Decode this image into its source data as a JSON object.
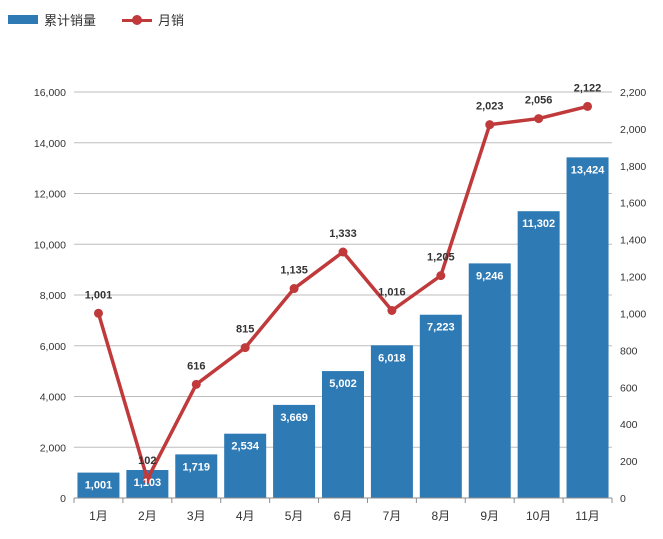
{
  "legend": {
    "cumulative_label": "累计销量",
    "monthly_label": "月销"
  },
  "colors": {
    "bar": "#2e7ab5",
    "line": "#c0393b",
    "grid": "#bdbdbd",
    "axis": "#8c8c8c",
    "text": "#333333",
    "bar_label": "#ffffff"
  },
  "chart_data": {
    "type": "bar",
    "categories": [
      "1月",
      "2月",
      "3月",
      "4月",
      "5月",
      "6月",
      "7月",
      "8月",
      "9月",
      "10月",
      "11月"
    ],
    "series": [
      {
        "name": "累计销量",
        "type": "bar",
        "axis": "left",
        "values": [
          1001,
          1103,
          1719,
          2534,
          3669,
          5002,
          6018,
          7223,
          9246,
          11302,
          13424
        ],
        "labels": [
          "1,001",
          "1,103",
          "1,719",
          "2,534",
          "3,669",
          "5,002",
          "6,018",
          "7,223",
          "9,246",
          "11,302",
          "13,424"
        ]
      },
      {
        "name": "月销",
        "type": "line",
        "axis": "right",
        "values": [
          1001,
          102,
          616,
          815,
          1135,
          1333,
          1016,
          1205,
          2023,
          2056,
          2122
        ],
        "labels": [
          "1,001",
          "102",
          "616",
          "815",
          "1,135",
          "1,333",
          "1,016",
          "1,205",
          "2,023",
          "2,056",
          "2,122"
        ]
      }
    ],
    "y_left": {
      "lim": [
        0,
        16000
      ],
      "ticks": [
        0,
        2000,
        4000,
        6000,
        8000,
        10000,
        12000,
        14000,
        16000
      ],
      "tick_labels": [
        "0",
        "2,000",
        "4,000",
        "6,000",
        "8,000",
        "10,000",
        "12,000",
        "14,000",
        "16,000"
      ]
    },
    "y_right": {
      "lim": [
        0,
        2200
      ],
      "ticks": [
        0,
        200,
        400,
        600,
        800,
        1000,
        1200,
        1400,
        1600,
        1800,
        2000,
        2200
      ],
      "tick_labels": [
        "0",
        "200",
        "400",
        "600",
        "800",
        "1,000",
        "1,200",
        "1,400",
        "1,600",
        "1,800",
        "2,000",
        "2,200"
      ]
    },
    "grid": true,
    "legend_position": "top-left"
  }
}
